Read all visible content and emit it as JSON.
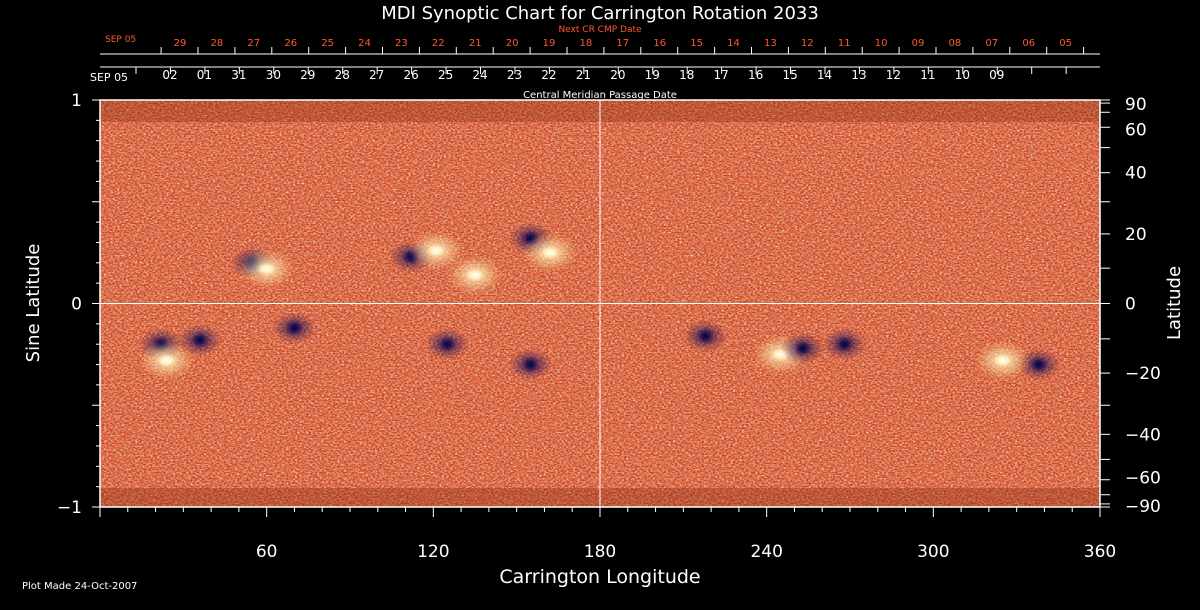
{
  "chart_data": {
    "type": "heatmap",
    "title": "MDI Synoptic Chart for Carrington Rotation 2033",
    "xlabel": "Carrington Longitude",
    "ylabel_left": "Sine Latitude",
    "ylabel_right": "Latitude",
    "xlim": [
      0,
      360
    ],
    "ylim_sine_latitude": [
      -1,
      1
    ],
    "x_tick_labels": [
      "60",
      "120",
      "180",
      "240",
      "300",
      "360"
    ],
    "x_tick_values": [
      60,
      120,
      180,
      240,
      300,
      360
    ],
    "y_left_tick_labels": [
      "1",
      "0",
      "−1"
    ],
    "y_left_tick_values": [
      1,
      0,
      -1
    ],
    "y_right_tick_labels": [
      "90",
      "60",
      "40",
      "20",
      "0",
      "−20",
      "−40",
      "−60",
      "−90"
    ],
    "y_right_tick_values": [
      90,
      60,
      40,
      20,
      0,
      -20,
      -40,
      -60,
      -90
    ],
    "cmp_axis_label": "Central Meridian Passage Date",
    "cmp_start_label": "SEP 05",
    "cmp_dates": [
      "02",
      "01",
      "31",
      "30",
      "29",
      "28",
      "27",
      "26",
      "25",
      "24",
      "23",
      "22",
      "21",
      "20",
      "19",
      "18",
      "17",
      "16",
      "15",
      "14",
      "13",
      "12",
      "11",
      "10",
      "09"
    ],
    "next_cr_axis_label": "Next CR CMP Date",
    "next_cr_start_label": "SEP 05",
    "next_cr_dates": [
      "29",
      "28",
      "27",
      "26",
      "25",
      "24",
      "23",
      "22",
      "21",
      "20",
      "19",
      "18",
      "17",
      "16",
      "15",
      "14",
      "13",
      "12",
      "11",
      "10",
      "09",
      "08",
      "07",
      "06",
      "05"
    ],
    "gridlines": {
      "longitude": 180,
      "sine_latitude": 0
    },
    "colors": {
      "background": "#000000",
      "field_base": "#e2491a",
      "positive": "#ffffff",
      "negative": "#0c0a4a",
      "next_cr_text": "#ff5a2a",
      "axis": "#ffffff"
    },
    "active_regions": [
      {
        "lon": 55,
        "sinlat": 0.2,
        "polarity": "negative"
      },
      {
        "lon": 60,
        "sinlat": 0.17,
        "polarity": "positive"
      },
      {
        "lon": 112,
        "sinlat": 0.23,
        "polarity": "negative"
      },
      {
        "lon": 121,
        "sinlat": 0.26,
        "polarity": "positive"
      },
      {
        "lon": 135,
        "sinlat": 0.14,
        "polarity": "positive"
      },
      {
        "lon": 155,
        "sinlat": 0.32,
        "polarity": "negative"
      },
      {
        "lon": 162,
        "sinlat": 0.25,
        "polarity": "positive"
      },
      {
        "lon": 22,
        "sinlat": -0.2,
        "polarity": "negative"
      },
      {
        "lon": 24,
        "sinlat": -0.28,
        "polarity": "positive"
      },
      {
        "lon": 36,
        "sinlat": -0.18,
        "polarity": "negative"
      },
      {
        "lon": 70,
        "sinlat": -0.12,
        "polarity": "negative"
      },
      {
        "lon": 125,
        "sinlat": -0.2,
        "polarity": "negative"
      },
      {
        "lon": 155,
        "sinlat": -0.3,
        "polarity": "negative"
      },
      {
        "lon": 218,
        "sinlat": -0.16,
        "polarity": "negative"
      },
      {
        "lon": 245,
        "sinlat": -0.25,
        "polarity": "positive"
      },
      {
        "lon": 253,
        "sinlat": -0.22,
        "polarity": "negative"
      },
      {
        "lon": 268,
        "sinlat": -0.2,
        "polarity": "negative"
      },
      {
        "lon": 338,
        "sinlat": -0.3,
        "polarity": "negative"
      },
      {
        "lon": 325,
        "sinlat": -0.28,
        "polarity": "positive"
      }
    ]
  },
  "footer": {
    "plot_made": "Plot Made 24-Oct-2007"
  }
}
